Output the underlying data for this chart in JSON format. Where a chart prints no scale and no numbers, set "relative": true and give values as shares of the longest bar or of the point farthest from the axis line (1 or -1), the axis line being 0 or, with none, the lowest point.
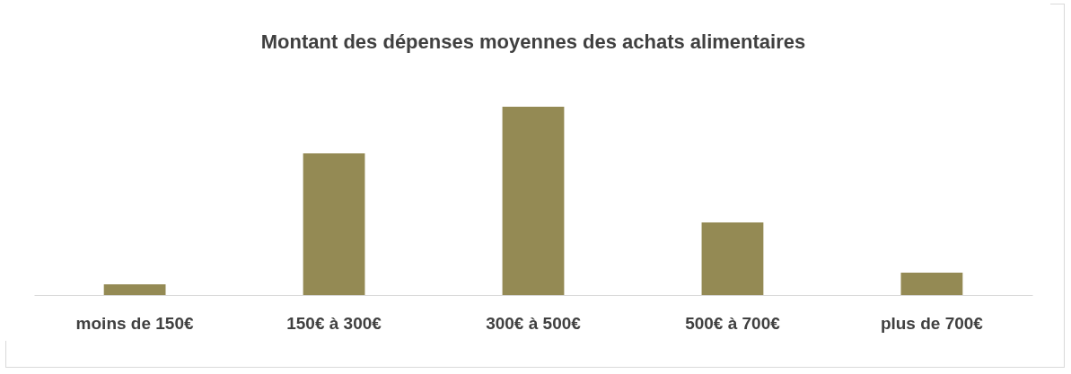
{
  "chart_data": {
    "type": "bar",
    "title": "Montant des dépenses moyennes des achats alimentaires",
    "categories": [
      "moins de 150€",
      "150€ à 300€",
      "300€ à 500€",
      "500€ à 700€",
      "plus de 700€"
    ],
    "values": [
      0.057,
      0.752,
      1,
      0.386,
      0.119
    ],
    "color": "#948a54",
    "relative": true,
    "grid": false
  }
}
